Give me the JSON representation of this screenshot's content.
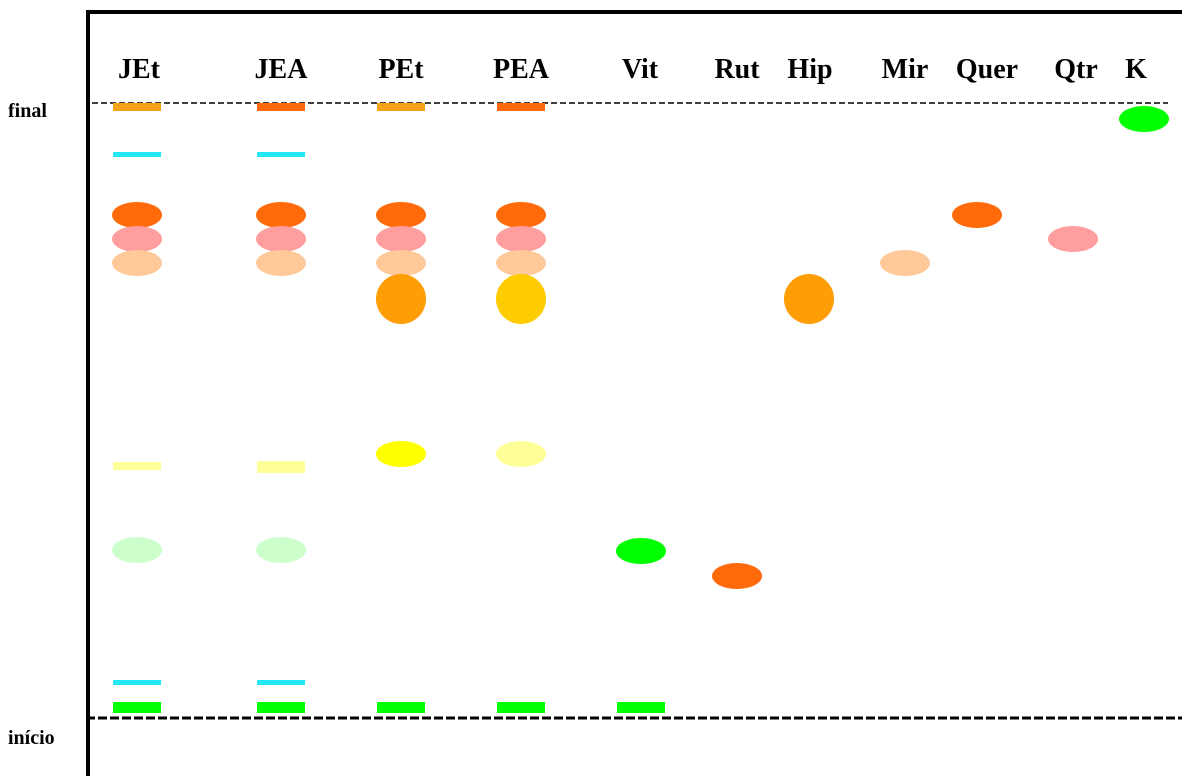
{
  "lanes": [
    {
      "key": "jet",
      "label": "JEt"
    },
    {
      "key": "jea",
      "label": "JEA"
    },
    {
      "key": "pet",
      "label": "PEt"
    },
    {
      "key": "pea",
      "label": "PEA"
    },
    {
      "key": "vit",
      "label": "Vit"
    },
    {
      "key": "rut",
      "label": "Rut"
    },
    {
      "key": "hip",
      "label": "Hip"
    },
    {
      "key": "mir",
      "label": "Mir"
    },
    {
      "key": "quer",
      "label": "Quer"
    },
    {
      "key": "qtr",
      "label": "Qtr"
    },
    {
      "key": "k",
      "label": "K"
    }
  ],
  "front_label": "final",
  "origin_label": "início",
  "colors": {
    "orange": "#f5a11c",
    "red_orange": "#ff6a0a",
    "cyan": "#22e6f0",
    "pink": "#ff9e9e",
    "peach": "#ffc99a",
    "amber": "#ff9d05",
    "gold": "#ffcc00",
    "yellow": "#ffff00",
    "pale_yellow": "#ffff99",
    "light_green": "#ccffcc",
    "green": "#00ff00"
  }
}
